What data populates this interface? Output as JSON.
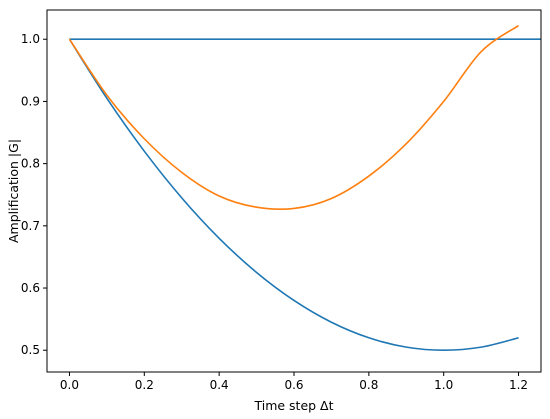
{
  "chart_data": {
    "type": "line",
    "title": "",
    "xlabel": "Time step Δt",
    "ylabel": "Amplification |G|",
    "xlim": [
      -0.06,
      1.26
    ],
    "ylim": [
      0.465,
      1.047
    ],
    "xticks": [
      0.0,
      0.2,
      0.4,
      0.6,
      0.8,
      1.0,
      1.2
    ],
    "xtick_labels": [
      "0.0",
      "0.2",
      "0.4",
      "0.6",
      "0.8",
      "1.0",
      "1.2"
    ],
    "yticks": [
      0.5,
      0.6,
      0.7,
      0.8,
      0.9,
      1.0
    ],
    "ytick_labels": [
      "0.5",
      "0.6",
      "0.7",
      "0.8",
      "0.9",
      "1.0"
    ],
    "grid": false,
    "legend": "none",
    "series": [
      {
        "color": "#1f77b4",
        "x": [
          0.0,
          1.26
        ],
        "y": [
          1.0,
          1.0
        ]
      },
      {
        "color": "#1f77b4",
        "x": [
          0.0,
          0.1,
          0.2,
          0.3,
          0.4,
          0.5,
          0.6,
          0.7,
          0.8,
          0.9,
          1.0,
          1.1,
          1.2
        ],
        "y": [
          1.0,
          0.905,
          0.82,
          0.745,
          0.68,
          0.625,
          0.58,
          0.545,
          0.52,
          0.505,
          0.5,
          0.505,
          0.52
        ]
      },
      {
        "color": "#ff7f0e",
        "x": [
          0.0,
          0.1,
          0.2,
          0.3,
          0.4,
          0.5,
          0.6,
          0.7,
          0.8,
          0.9,
          1.0,
          1.1,
          1.2
        ],
        "y": [
          1.0,
          0.91,
          0.84,
          0.786,
          0.748,
          0.73,
          0.728,
          0.744,
          0.78,
          0.832,
          0.9,
          0.98,
          1.022
        ]
      }
    ]
  }
}
